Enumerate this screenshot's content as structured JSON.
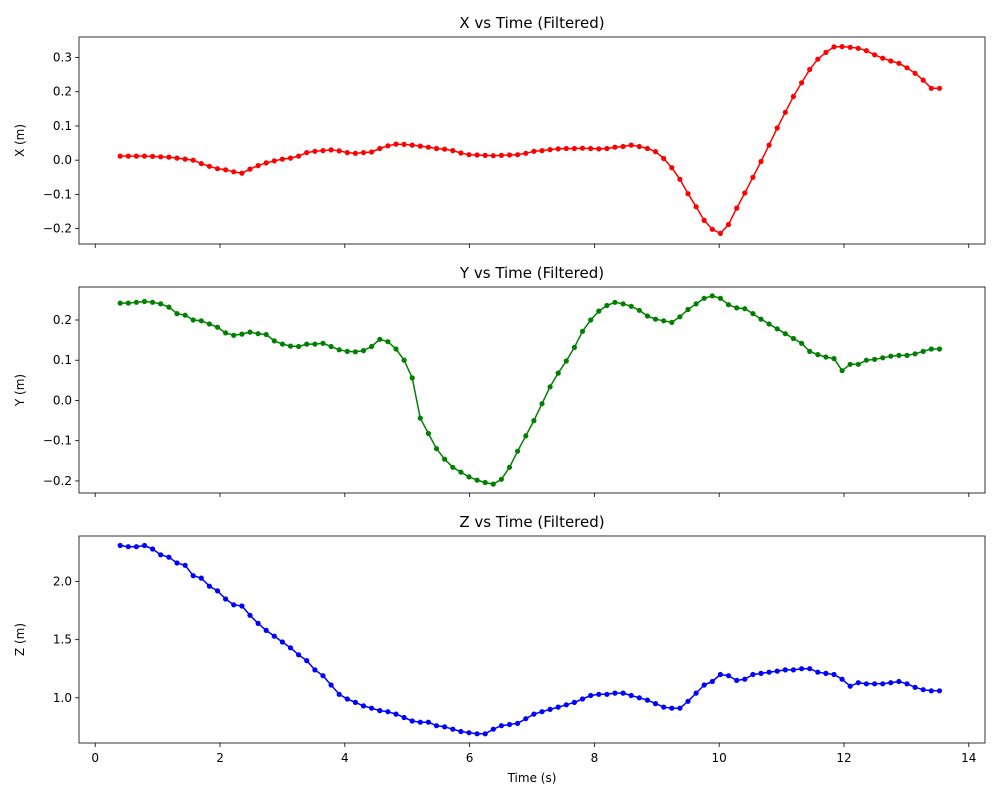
{
  "chart_data": [
    {
      "type": "line",
      "title": "X vs Time (Filtered)",
      "xlabel": "",
      "ylabel": "X (m)",
      "xlim": [
        -0.26,
        14.26
      ],
      "ylim": [
        -0.245,
        0.36
      ],
      "xticks": [
        0,
        2,
        4,
        6,
        8,
        10,
        12,
        14
      ],
      "xtick_labels_visible": false,
      "yticks": [
        -0.2,
        -0.1,
        0.0,
        0.1,
        0.2,
        0.3
      ],
      "ytick_labels": [
        "−0.2",
        "−0.1",
        "0.0",
        "0.1",
        "0.2",
        "0.3"
      ],
      "grid": false,
      "color": "#ff0000",
      "marker": "circle",
      "series": [
        {
          "x": [
            0.4,
            0.53,
            0.66,
            0.79,
            0.92,
            1.05,
            1.18,
            1.31,
            1.44,
            1.57,
            1.7,
            1.83,
            1.96,
            2.09,
            2.22,
            2.35,
            2.48,
            2.61,
            2.74,
            2.87,
            3.0,
            3.13,
            3.26,
            3.39,
            3.52,
            3.65,
            3.78,
            3.91,
            4.04,
            4.17,
            4.3,
            4.43,
            4.56,
            4.69,
            4.82,
            4.95,
            5.08,
            5.21,
            5.34,
            5.47,
            5.6,
            5.73,
            5.86,
            5.99,
            6.12,
            6.25,
            6.38,
            6.51,
            6.64,
            6.77,
            6.9,
            7.03,
            7.16,
            7.29,
            7.42,
            7.55,
            7.68,
            7.81,
            7.94,
            8.07,
            8.2,
            8.33,
            8.46,
            8.59,
            8.72,
            8.85,
            8.98,
            9.11,
            9.24,
            9.37,
            9.5,
            9.63,
            9.76,
            9.89,
            10.02,
            10.15,
            10.28,
            10.41,
            10.54,
            10.67,
            10.8,
            10.93,
            11.06,
            11.19,
            11.32,
            11.45,
            11.58,
            11.71,
            11.84,
            11.97,
            12.1,
            12.23,
            12.36,
            12.49,
            12.62,
            12.75,
            12.88,
            13.01,
            13.14,
            13.27,
            13.4,
            13.53
          ],
          "y": [
            0.012,
            0.012,
            0.012,
            0.012,
            0.011,
            0.01,
            0.009,
            0.006,
            0.003,
            0.0,
            -0.01,
            -0.018,
            -0.025,
            -0.028,
            -0.034,
            -0.038,
            -0.026,
            -0.016,
            -0.008,
            -0.002,
            0.003,
            0.006,
            0.012,
            0.022,
            0.026,
            0.028,
            0.03,
            0.027,
            0.022,
            0.02,
            0.022,
            0.024,
            0.034,
            0.042,
            0.047,
            0.046,
            0.044,
            0.041,
            0.038,
            0.034,
            0.032,
            0.028,
            0.021,
            0.016,
            0.015,
            0.014,
            0.013,
            0.014,
            0.015,
            0.016,
            0.02,
            0.026,
            0.028,
            0.031,
            0.033,
            0.034,
            0.034,
            0.035,
            0.034,
            0.033,
            0.034,
            0.038,
            0.04,
            0.044,
            0.04,
            0.034,
            0.025,
            0.005,
            -0.022,
            -0.056,
            -0.098,
            -0.136,
            -0.176,
            -0.202,
            -0.214,
            -0.188,
            -0.14,
            -0.096,
            -0.05,
            -0.004,
            0.044,
            0.094,
            0.14,
            0.186,
            0.226,
            0.265,
            0.295,
            0.315,
            0.331,
            0.332,
            0.33,
            0.327,
            0.32,
            0.308,
            0.298,
            0.29,
            0.283,
            0.27,
            0.254,
            0.234,
            0.21,
            0.21
          ]
        }
      ]
    },
    {
      "type": "line",
      "title": "Y vs Time (Filtered)",
      "xlabel": "",
      "ylabel": "Y (m)",
      "xlim": [
        -0.26,
        14.26
      ],
      "ylim": [
        -0.23,
        0.282
      ],
      "xticks": [
        0,
        2,
        4,
        6,
        8,
        10,
        12,
        14
      ],
      "xtick_labels_visible": false,
      "yticks": [
        -0.2,
        -0.1,
        0.0,
        0.1,
        0.2
      ],
      "ytick_labels": [
        "−0.2",
        "−0.1",
        "0.0",
        "0.1",
        "0.2"
      ],
      "grid": false,
      "color": "#008000",
      "marker": "circle",
      "series": [
        {
          "x": [
            0.4,
            0.53,
            0.66,
            0.79,
            0.92,
            1.05,
            1.18,
            1.31,
            1.44,
            1.57,
            1.7,
            1.83,
            1.96,
            2.09,
            2.22,
            2.35,
            2.48,
            2.61,
            2.74,
            2.87,
            3.0,
            3.13,
            3.26,
            3.39,
            3.52,
            3.65,
            3.78,
            3.91,
            4.04,
            4.17,
            4.3,
            4.43,
            4.56,
            4.69,
            4.82,
            4.95,
            5.08,
            5.21,
            5.34,
            5.47,
            5.6,
            5.73,
            5.86,
            5.99,
            6.12,
            6.25,
            6.38,
            6.51,
            6.64,
            6.77,
            6.9,
            7.03,
            7.16,
            7.29,
            7.42,
            7.55,
            7.68,
            7.81,
            7.94,
            8.07,
            8.2,
            8.33,
            8.46,
            8.59,
            8.72,
            8.85,
            8.98,
            9.11,
            9.24,
            9.37,
            9.5,
            9.63,
            9.76,
            9.89,
            10.02,
            10.15,
            10.28,
            10.41,
            10.54,
            10.67,
            10.8,
            10.93,
            11.06,
            11.19,
            11.32,
            11.45,
            11.58,
            11.71,
            11.84,
            11.97,
            12.1,
            12.23,
            12.36,
            12.49,
            12.62,
            12.75,
            12.88,
            13.01,
            13.14,
            13.27,
            13.4,
            13.53
          ],
          "y": [
            0.242,
            0.242,
            0.244,
            0.246,
            0.244,
            0.24,
            0.232,
            0.216,
            0.212,
            0.2,
            0.198,
            0.19,
            0.182,
            0.168,
            0.162,
            0.165,
            0.17,
            0.166,
            0.164,
            0.148,
            0.14,
            0.135,
            0.134,
            0.14,
            0.14,
            0.142,
            0.134,
            0.126,
            0.122,
            0.121,
            0.124,
            0.134,
            0.152,
            0.146,
            0.128,
            0.1,
            0.056,
            -0.044,
            -0.082,
            -0.12,
            -0.146,
            -0.166,
            -0.178,
            -0.19,
            -0.198,
            -0.204,
            -0.208,
            -0.196,
            -0.166,
            -0.126,
            -0.088,
            -0.05,
            -0.008,
            0.034,
            0.068,
            0.098,
            0.132,
            0.172,
            0.2,
            0.222,
            0.236,
            0.244,
            0.24,
            0.234,
            0.224,
            0.21,
            0.202,
            0.198,
            0.194,
            0.208,
            0.226,
            0.24,
            0.254,
            0.26,
            0.254,
            0.238,
            0.23,
            0.228,
            0.216,
            0.202,
            0.19,
            0.178,
            0.166,
            0.154,
            0.142,
            0.122,
            0.114,
            0.108,
            0.104,
            0.074,
            0.09,
            0.09,
            0.1,
            0.102,
            0.106,
            0.11,
            0.112,
            0.112,
            0.116,
            0.122,
            0.128,
            0.128
          ]
        }
      ]
    },
    {
      "type": "line",
      "title": "Z vs Time (Filtered)",
      "xlabel": "Time (s)",
      "ylabel": "Z (m)",
      "xlim": [
        -0.26,
        14.26
      ],
      "ylim": [
        0.611,
        2.392
      ],
      "xticks": [
        0,
        2,
        4,
        6,
        8,
        10,
        12,
        14
      ],
      "xtick_labels": [
        "0",
        "2",
        "4",
        "6",
        "8",
        "10",
        "12",
        "14"
      ],
      "xtick_labels_visible": true,
      "yticks": [
        1.0,
        1.5,
        2.0
      ],
      "ytick_labels": [
        "1.0",
        "1.5",
        "2.0"
      ],
      "grid": false,
      "color": "#0000ff",
      "marker": "circle",
      "series": [
        {
          "x": [
            0.4,
            0.53,
            0.66,
            0.79,
            0.92,
            1.05,
            1.18,
            1.31,
            1.44,
            1.57,
            1.7,
            1.83,
            1.96,
            2.09,
            2.22,
            2.35,
            2.48,
            2.61,
            2.74,
            2.87,
            3.0,
            3.13,
            3.26,
            3.39,
            3.52,
            3.65,
            3.78,
            3.91,
            4.04,
            4.17,
            4.3,
            4.43,
            4.56,
            4.69,
            4.82,
            4.95,
            5.08,
            5.21,
            5.34,
            5.47,
            5.6,
            5.73,
            5.86,
            5.99,
            6.12,
            6.25,
            6.38,
            6.51,
            6.64,
            6.77,
            6.9,
            7.03,
            7.16,
            7.29,
            7.42,
            7.55,
            7.68,
            7.81,
            7.94,
            8.07,
            8.2,
            8.33,
            8.46,
            8.59,
            8.72,
            8.85,
            8.98,
            9.11,
            9.24,
            9.37,
            9.5,
            9.63,
            9.76,
            9.89,
            10.02,
            10.15,
            10.28,
            10.41,
            10.54,
            10.67,
            10.8,
            10.93,
            11.06,
            11.19,
            11.32,
            11.45,
            11.58,
            11.71,
            11.84,
            11.97,
            12.1,
            12.23,
            12.36,
            12.49,
            12.62,
            12.75,
            12.88,
            13.01,
            13.14,
            13.27,
            13.4,
            13.53
          ],
          "y": [
            2.31,
            2.3,
            2.3,
            2.31,
            2.28,
            2.23,
            2.21,
            2.16,
            2.14,
            2.05,
            2.03,
            1.96,
            1.92,
            1.85,
            1.8,
            1.79,
            1.71,
            1.64,
            1.58,
            1.53,
            1.48,
            1.43,
            1.37,
            1.32,
            1.24,
            1.19,
            1.11,
            1.03,
            0.99,
            0.96,
            0.93,
            0.91,
            0.89,
            0.88,
            0.86,
            0.83,
            0.8,
            0.79,
            0.79,
            0.76,
            0.75,
            0.73,
            0.71,
            0.7,
            0.69,
            0.69,
            0.73,
            0.76,
            0.77,
            0.78,
            0.82,
            0.86,
            0.88,
            0.9,
            0.92,
            0.94,
            0.96,
            0.99,
            1.02,
            1.03,
            1.03,
            1.04,
            1.04,
            1.02,
            1.0,
            0.98,
            0.95,
            0.92,
            0.91,
            0.91,
            0.97,
            1.04,
            1.11,
            1.14,
            1.2,
            1.19,
            1.15,
            1.16,
            1.2,
            1.21,
            1.22,
            1.23,
            1.24,
            1.24,
            1.25,
            1.25,
            1.22,
            1.21,
            1.2,
            1.16,
            1.1,
            1.13,
            1.12,
            1.12,
            1.12,
            1.13,
            1.14,
            1.12,
            1.09,
            1.07,
            1.06,
            1.06
          ]
        }
      ]
    }
  ]
}
